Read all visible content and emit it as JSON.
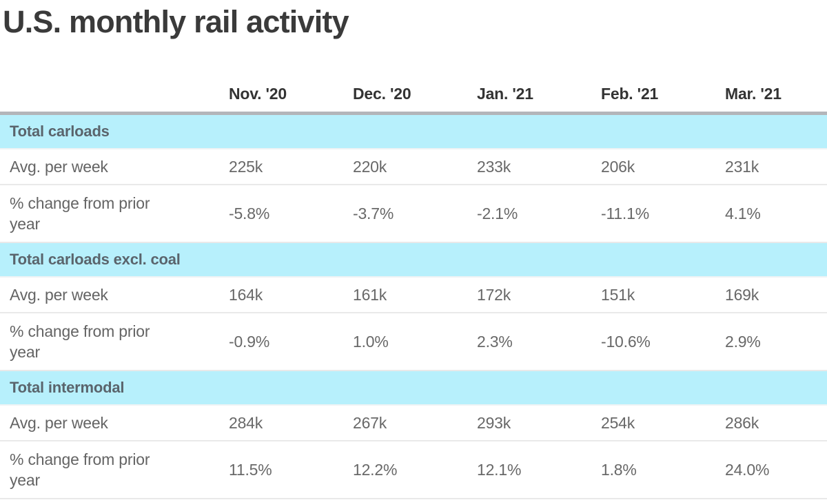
{
  "title": "U.S. monthly rail activity",
  "chart_data": {
    "type": "table",
    "title": "U.S. monthly rail activity",
    "columns": [
      "Nov. '20",
      "Dec. '20",
      "Jan. '21",
      "Feb. '21",
      "Mar. '21"
    ],
    "metric_labels": {
      "avg": "Avg. per week",
      "pct": "% change from prior year"
    },
    "sections": [
      {
        "label": "Total carloads",
        "avg_per_week": [
          "225k",
          "220k",
          "233k",
          "206k",
          "231k"
        ],
        "pct_change": [
          "-5.8%",
          "-3.7%",
          "-2.1%",
          "-11.1%",
          "4.1%"
        ]
      },
      {
        "label": "Total carloads excl. coal",
        "avg_per_week": [
          "164k",
          "161k",
          "172k",
          "151k",
          "169k"
        ],
        "pct_change": [
          "-0.9%",
          "1.0%",
          "2.3%",
          "-10.6%",
          "2.9%"
        ]
      },
      {
        "label": "Total intermodal",
        "avg_per_week": [
          "284k",
          "267k",
          "293k",
          "254k",
          "286k"
        ],
        "pct_change": [
          "11.5%",
          "12.2%",
          "12.1%",
          "1.8%",
          "24.0%"
        ]
      }
    ],
    "layout": {
      "grid": "off",
      "legend": "none",
      "section_row_style": "highlighted-band"
    }
  },
  "colors": {
    "section_header_bg": "#b7f0fc",
    "header_rule": "#b3b5b9",
    "row_divider": "#e9e9e9",
    "title_text": "#3a3a3a",
    "column_header_text": "#333333",
    "section_header_text": "#5a646c",
    "body_text": "#656565"
  }
}
